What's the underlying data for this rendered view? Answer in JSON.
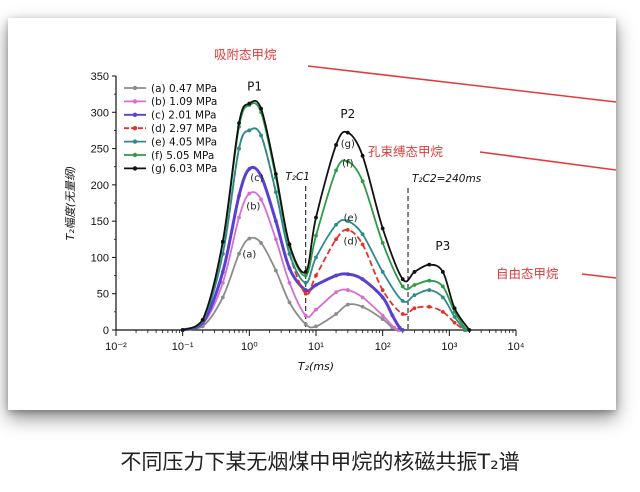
{
  "caption": "不同压力下某无烟煤中甲烷的核磁共振T₂谱",
  "annotations": [
    "吸附态甲烷",
    "孔束缚态甲烷",
    "自由态甲烷"
  ],
  "peaks": [
    "P1",
    "P2",
    "P3"
  ],
  "cutoffs": [
    {
      "label": "T₂C1",
      "x": 7
    },
    {
      "label": "T₂C2=240ms",
      "x": 240
    }
  ],
  "chart_data": {
    "type": "line",
    "xlabel": "T₂(ms)",
    "ylabel": "T₂幅度(无量纲)",
    "xscale": "log",
    "xlim": [
      0.01,
      10000
    ],
    "ylim": [
      0,
      350
    ],
    "xticks": [
      "10⁻²",
      "10⁻¹",
      "10⁰",
      "10¹",
      "10²",
      "10³",
      "10⁴"
    ],
    "yticks": [
      0,
      50,
      100,
      150,
      200,
      250,
      300,
      350
    ],
    "legend_position": "top-left",
    "series": [
      {
        "name": "(a) 0.47 MPa",
        "label": "(a)",
        "color": "#8c8c8c",
        "x": [
          0.1,
          0.2,
          0.4,
          0.7,
          1.0,
          1.5,
          2.5,
          4,
          7,
          10,
          20,
          30,
          50,
          100,
          140,
          170
        ],
        "y": [
          0,
          5,
          45,
          105,
          126,
          120,
          82,
          38,
          8,
          5,
          22,
          35,
          32,
          15,
          3,
          0
        ]
      },
      {
        "name": "(b) 1.09 MPa",
        "label": "(b)",
        "color": "#d36fd3",
        "x": [
          0.1,
          0.2,
          0.4,
          0.7,
          1.0,
          1.5,
          2.5,
          4,
          7,
          10,
          20,
          30,
          50,
          100,
          150,
          180
        ],
        "y": [
          0,
          8,
          65,
          155,
          188,
          180,
          125,
          65,
          20,
          28,
          52,
          55,
          45,
          20,
          3,
          0
        ]
      },
      {
        "name": "(c) 2.01 MPa",
        "label": "(c)",
        "color": "#5b3fd1",
        "x": [
          0.1,
          0.2,
          0.4,
          0.7,
          1.0,
          1.5,
          2.5,
          4,
          7,
          10,
          20,
          30,
          50,
          100,
          140,
          180,
          200
        ],
        "y": [
          0,
          10,
          80,
          185,
          222,
          212,
          150,
          85,
          55,
          62,
          75,
          77,
          70,
          45,
          20,
          3,
          0
        ]
      },
      {
        "name": "(d) 2.97 MPa",
        "label": "(d)",
        "color": "#e0342a",
        "dashed": true,
        "x": [
          0.1,
          0.2,
          0.4,
          0.7,
          1.0,
          1.5,
          2.5,
          4,
          7,
          10,
          20,
          30,
          50,
          100,
          200,
          300,
          500,
          800,
          1200,
          1700
        ],
        "y": [
          0,
          12,
          105,
          250,
          275,
          268,
          190,
          105,
          50,
          75,
          125,
          138,
          118,
          55,
          22,
          30,
          32,
          25,
          10,
          0
        ]
      },
      {
        "name": "(e) 4.05 MPa",
        "label": "(e)",
        "color": "#2e8b8b",
        "x": [
          0.1,
          0.2,
          0.4,
          0.7,
          1.0,
          1.5,
          2.5,
          4,
          7,
          10,
          20,
          30,
          50,
          100,
          200,
          300,
          500,
          800,
          1200,
          1700
        ],
        "y": [
          0,
          12,
          105,
          250,
          275,
          268,
          190,
          105,
          65,
          100,
          145,
          150,
          132,
          80,
          40,
          48,
          55,
          45,
          18,
          0
        ]
      },
      {
        "name": "(f) 5.05 MPa",
        "label": "(f)",
        "color": "#2e9a47",
        "x": [
          0.1,
          0.2,
          0.4,
          0.7,
          1.0,
          1.5,
          2.5,
          4,
          7,
          10,
          20,
          30,
          50,
          100,
          200,
          300,
          500,
          800,
          1200,
          1800
        ],
        "y": [
          0,
          14,
          120,
          280,
          310,
          300,
          210,
          115,
          75,
          130,
          220,
          232,
          205,
          120,
          60,
          62,
          68,
          60,
          25,
          0
        ]
      },
      {
        "name": "(g) 6.03 MPa",
        "label": "(g)",
        "color": "#111111",
        "x": [
          0.1,
          0.2,
          0.4,
          0.7,
          1.0,
          1.5,
          2.5,
          4,
          7,
          10,
          20,
          30,
          50,
          100,
          200,
          300,
          500,
          800,
          1200,
          2000
        ],
        "y": [
          0,
          14,
          122,
          285,
          312,
          305,
          215,
          118,
          80,
          155,
          255,
          272,
          240,
          140,
          70,
          80,
          90,
          80,
          30,
          0
        ]
      }
    ]
  }
}
